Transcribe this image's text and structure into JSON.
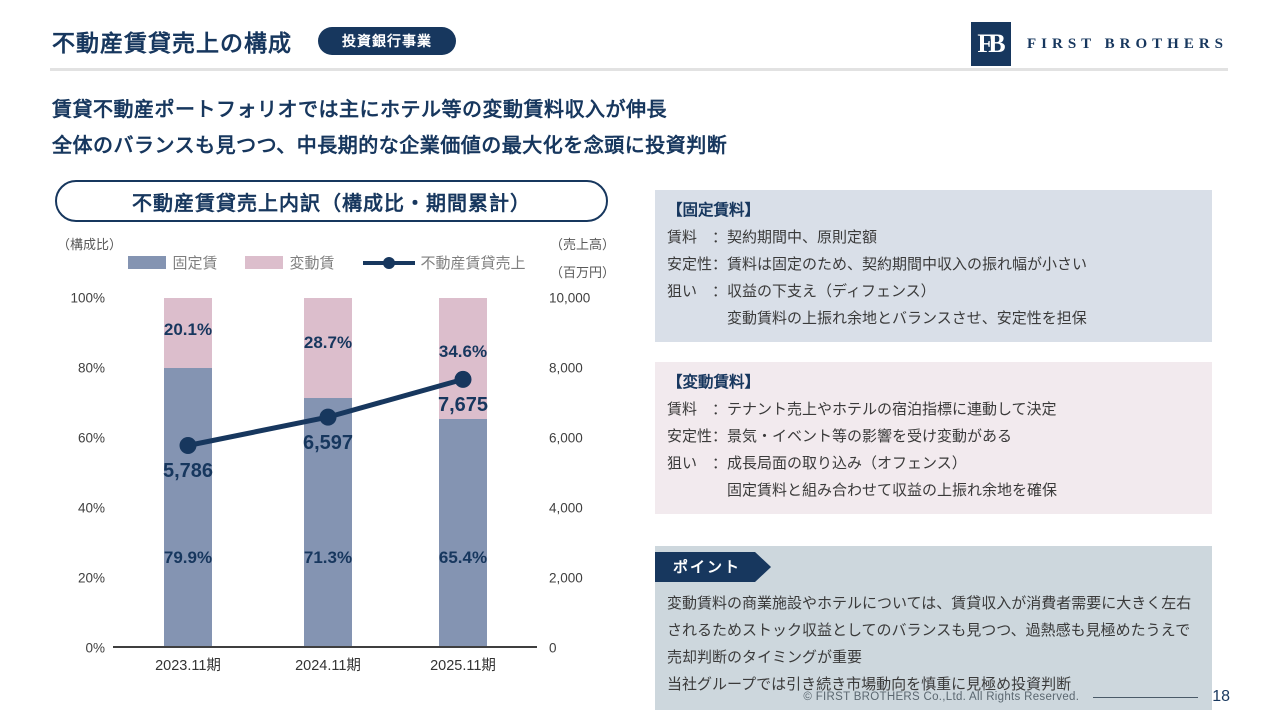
{
  "header": {
    "title": "不動産賃貸売上の構成",
    "badge": "投資銀行事業",
    "logo_monogram": "FB",
    "brand": "FIRST BROTHERS"
  },
  "subtitle": {
    "line1": "賃貸不動産ポートフォリオでは主にホテル等の変動賃料収入が伸長",
    "line2": "全体のバランスも見つつ、中長期的な企業価値の最大化を念頭に投資判断"
  },
  "chart_data": {
    "type": "bar",
    "subtype": "100%-stacked-bar-with-line",
    "title": "不動産賃貸売上内訳（構成比・期間累計）",
    "left_axis_label": "（構成比）",
    "right_axis_labels": [
      "（売上高）",
      "（百万円）"
    ],
    "categories": [
      "2023.11期",
      "2024.11期",
      "2025.11期"
    ],
    "series": [
      {
        "name": "固定賃",
        "type": "bar",
        "color": "#8494B2",
        "values_pct": [
          79.9,
          71.3,
          65.4
        ],
        "labels": [
          "79.9%",
          "71.3%",
          "65.4%"
        ]
      },
      {
        "name": "変動賃",
        "type": "bar",
        "color": "#DCBECC",
        "values_pct": [
          20.1,
          28.7,
          34.6
        ],
        "labels": [
          "20.1%",
          "28.7%",
          "34.6%"
        ]
      },
      {
        "name": "不動産賃貸売上",
        "type": "line",
        "color": "#17375E",
        "values": [
          5786,
          6597,
          7675
        ],
        "labels": [
          "5,786",
          "6,597",
          "7,675"
        ]
      }
    ],
    "left_ticks": [
      "100%",
      "80%",
      "60%",
      "40%",
      "20%",
      "0%"
    ],
    "right_ticks": [
      "10,000",
      "8,000",
      "6,000",
      "4,000",
      "2,000",
      "0"
    ],
    "left_ylim": [
      0,
      100
    ],
    "right_ylim": [
      0,
      10000
    ],
    "grid": false,
    "legend_position": "top"
  },
  "info_boxes": {
    "fixed": {
      "title": "【固定賃料】",
      "body": "賃料　：契約期間中、原則定額\n安定性：賃料は固定のため、契約期間中収入の振れ幅が小さい\n狙い　：収益の下支え（ディフェンス）\n　　　　変動賃料の上振れ余地とバランスさせ、安定性を担保"
    },
    "variable": {
      "title": "【変動賃料】",
      "body": "賃料　：テナント売上やホテルの宿泊指標に連動して決定\n安定性：景気・イベント等の影響を受け変動がある\n狙い　：成長局面の取り込み（オフェンス）\n　　　　固定賃料と組み合わせて収益の上振れ余地を確保"
    },
    "point": {
      "label": "ポイント",
      "body": "変動賃料の商業施設やホテルについては、賃貸収入が消費者需要に大きく左右されるためストック収益としてのバランスも見つつ、過熱感も見極めたうえで売却判断のタイミングが重要\n当社グループでは引き続き市場動向を慎重に見極め投資判断"
    }
  },
  "footer": {
    "copyright": "© FIRST BROTHERS Co.,Ltd. All Rights Reserved.",
    "page": "18"
  },
  "colors": {
    "navy": "#17375E",
    "bar_fixed": "#8494B2",
    "bar_variable": "#DCBECC",
    "box_fixed_bg": "#D9DFE8",
    "box_variable_bg": "#F2EAEE",
    "box_point_bg": "#CDD7DD"
  }
}
